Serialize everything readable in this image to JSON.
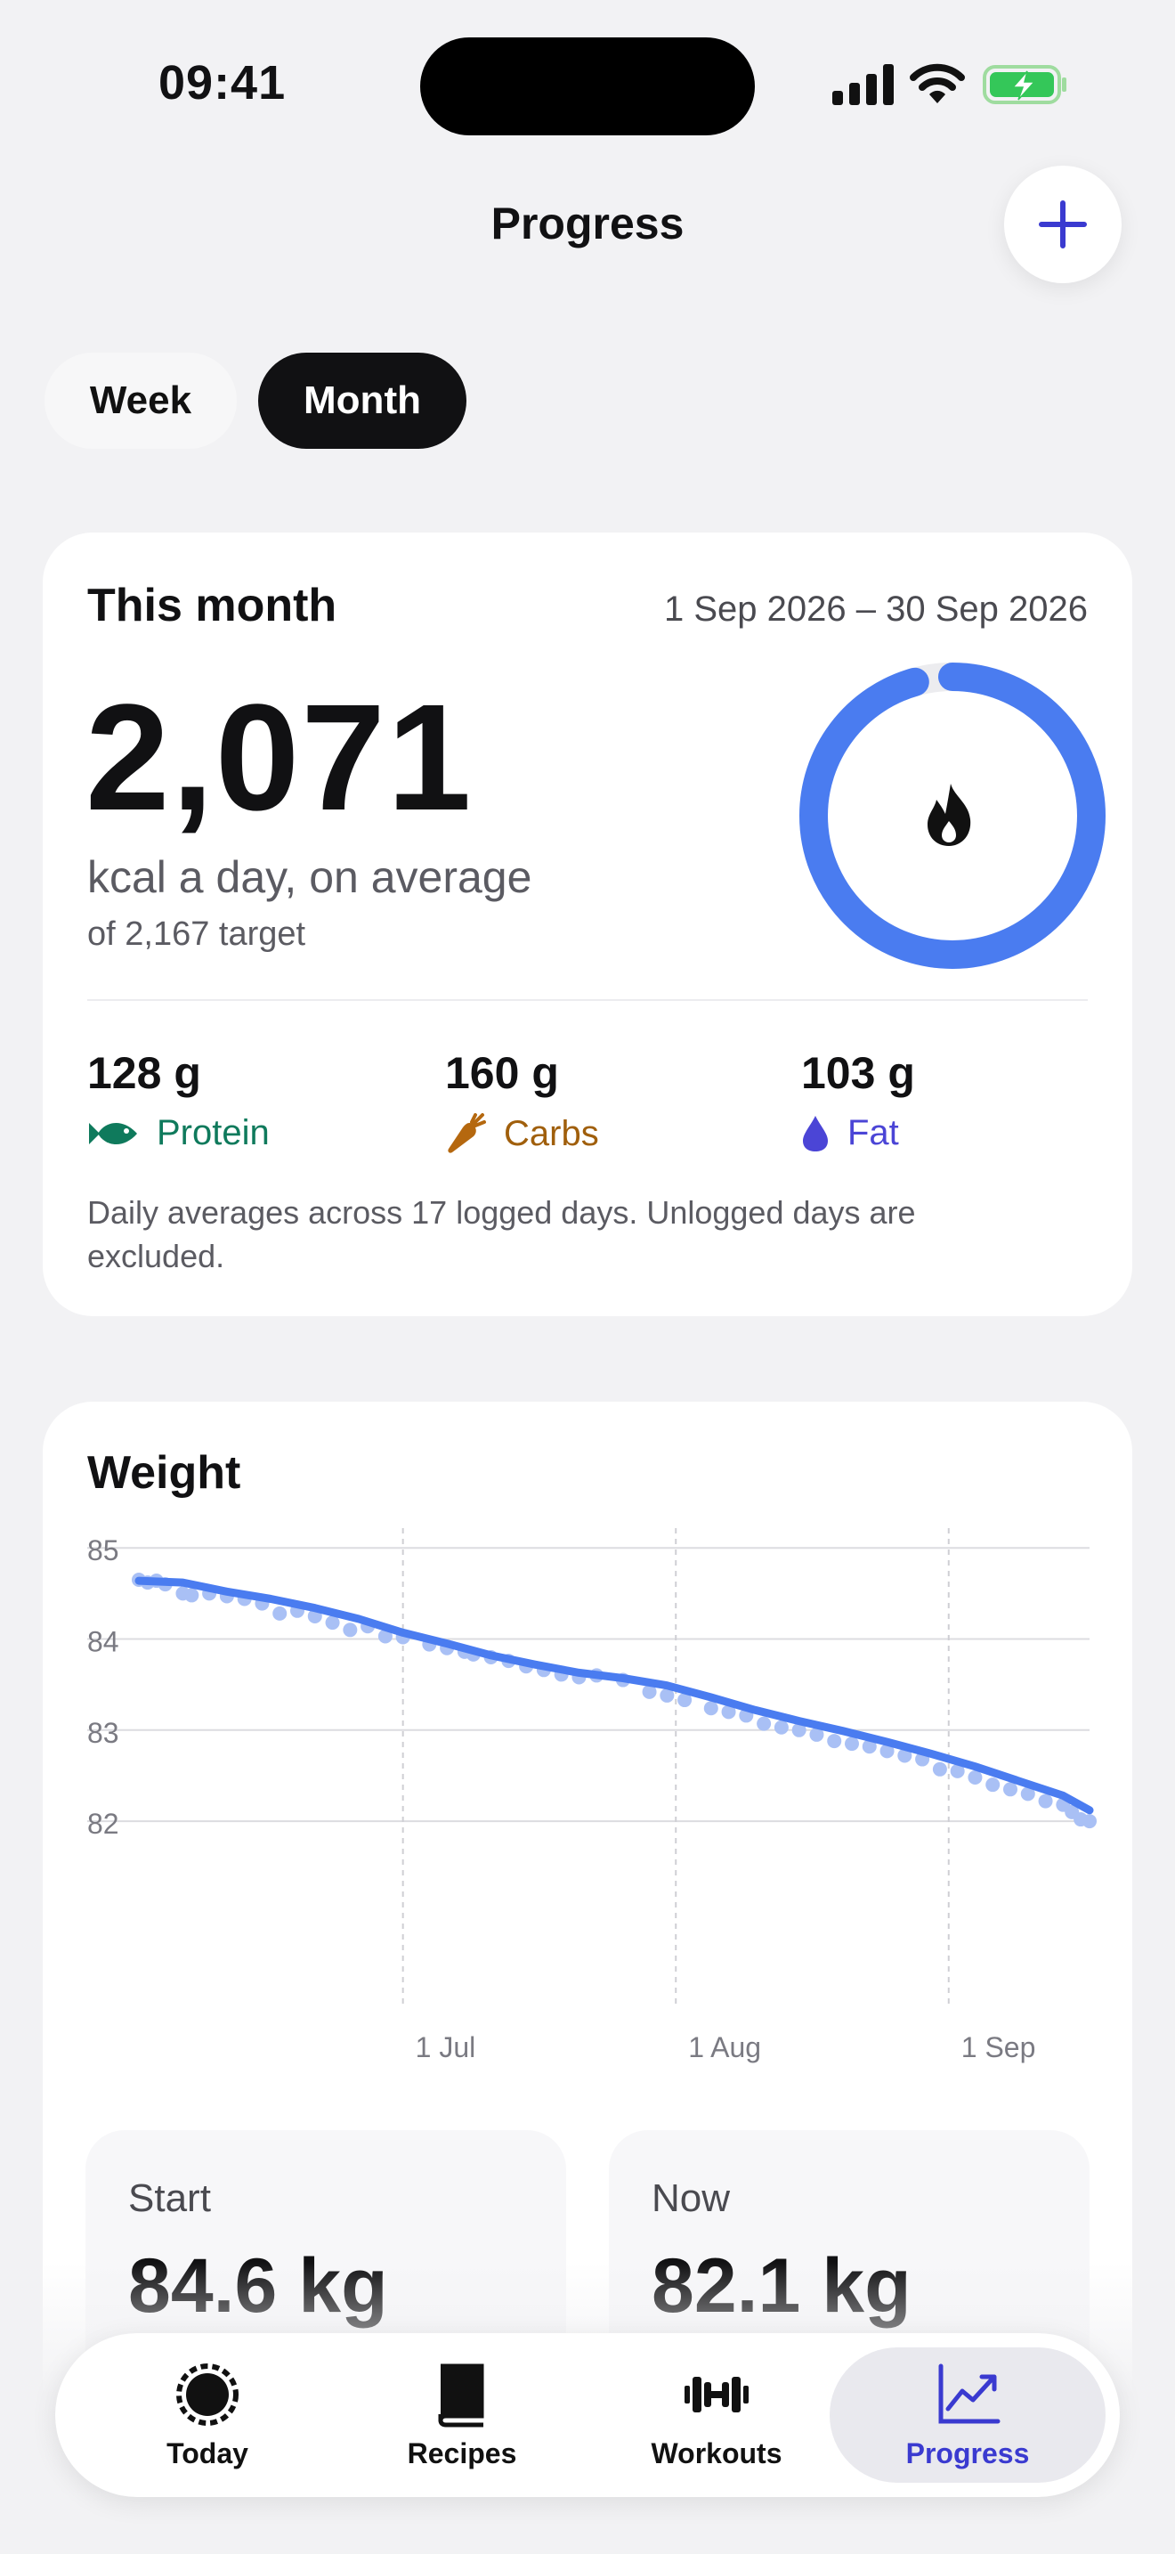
{
  "status": {
    "time": "09:41"
  },
  "header": {
    "title": "Progress",
    "add_icon": "plus-icon"
  },
  "segments": {
    "week": "Week",
    "month": "Month",
    "selected": "Month"
  },
  "month_card": {
    "title": "This month",
    "date_range": "1 Sep 2026 – 30 Sep 2026",
    "average_kcal": "2,071",
    "avg_label": "kcal a day, on average",
    "target_label": "of 2,167 target",
    "ring_progress": 0.956,
    "ring_icon": "flame-icon",
    "macros": [
      {
        "value": "128 g",
        "label": "Protein",
        "icon": "fish-icon",
        "color": "#0f7a5c"
      },
      {
        "value": "160 g",
        "label": "Carbs",
        "icon": "carrot-icon",
        "color": "#a05f0c"
      },
      {
        "value": "103 g",
        "label": "Fat",
        "icon": "drop-icon",
        "color": "#4b45d6"
      }
    ],
    "note": "Daily averages across 17 logged days. Unlogged days are excluded."
  },
  "weight_card": {
    "title": "Weight",
    "start_label": "Start",
    "start_value": "84.6 kg",
    "now_label": "Now",
    "now_value": "82.1 kg"
  },
  "chart_data": {
    "type": "line",
    "ylabel": "",
    "xlabel": "",
    "ylim": [
      81.6,
      85.1
    ],
    "yticks": [
      85,
      84,
      83,
      82
    ],
    "xticks": [
      {
        "label": "1 Jul",
        "day": 30
      },
      {
        "label": "1 Aug",
        "day": 61
      },
      {
        "label": "1 Sep",
        "day": 92
      }
    ],
    "x_range": [
      0,
      108
    ],
    "trend": [
      [
        0,
        84.64
      ],
      [
        5,
        84.62
      ],
      [
        10,
        84.52
      ],
      [
        15,
        84.44
      ],
      [
        20,
        84.34
      ],
      [
        25,
        84.22
      ],
      [
        30,
        84.07
      ],
      [
        35,
        83.95
      ],
      [
        40,
        83.82
      ],
      [
        45,
        83.72
      ],
      [
        50,
        83.63
      ],
      [
        55,
        83.57
      ],
      [
        60,
        83.49
      ],
      [
        65,
        83.36
      ],
      [
        70,
        83.22
      ],
      [
        75,
        83.1
      ],
      [
        80,
        82.99
      ],
      [
        85,
        82.87
      ],
      [
        90,
        82.74
      ],
      [
        95,
        82.6
      ],
      [
        100,
        82.44
      ],
      [
        105,
        82.28
      ],
      [
        108,
        82.12
      ]
    ],
    "points": [
      [
        0,
        84.65
      ],
      [
        1,
        84.62
      ],
      [
        2,
        84.64
      ],
      [
        3,
        84.6
      ],
      [
        5,
        84.5
      ],
      [
        6,
        84.48
      ],
      [
        8,
        84.5
      ],
      [
        10,
        84.47
      ],
      [
        12,
        84.44
      ],
      [
        14,
        84.39
      ],
      [
        16,
        84.28
      ],
      [
        18,
        84.31
      ],
      [
        20,
        84.25
      ],
      [
        22,
        84.18
      ],
      [
        24,
        84.1
      ],
      [
        26,
        84.14
      ],
      [
        28,
        84.03
      ],
      [
        30,
        84.02
      ],
      [
        33,
        83.94
      ],
      [
        35,
        83.9
      ],
      [
        37,
        83.86
      ],
      [
        38,
        83.83
      ],
      [
        40,
        83.8
      ],
      [
        42,
        83.76
      ],
      [
        44,
        83.7
      ],
      [
        46,
        83.66
      ],
      [
        48,
        83.61
      ],
      [
        50,
        83.58
      ],
      [
        52,
        83.6
      ],
      [
        55,
        83.55
      ],
      [
        58,
        83.42
      ],
      [
        60,
        83.38
      ],
      [
        62,
        83.33
      ],
      [
        65,
        83.24
      ],
      [
        67,
        83.2
      ],
      [
        69,
        83.16
      ],
      [
        71,
        83.07
      ],
      [
        73,
        83.03
      ],
      [
        75,
        83.0
      ],
      [
        77,
        82.95
      ],
      [
        79,
        82.88
      ],
      [
        81,
        82.85
      ],
      [
        83,
        82.82
      ],
      [
        85,
        82.77
      ],
      [
        87,
        82.72
      ],
      [
        89,
        82.68
      ],
      [
        91,
        82.57
      ],
      [
        93,
        82.55
      ],
      [
        95,
        82.48
      ],
      [
        97,
        82.4
      ],
      [
        99,
        82.35
      ],
      [
        101,
        82.3
      ],
      [
        103,
        82.22
      ],
      [
        105,
        82.18
      ],
      [
        106,
        82.1
      ],
      [
        107,
        82.02
      ],
      [
        108,
        82.0
      ]
    ],
    "grid": true,
    "line_color": "#4a7cf0",
    "point_color": "#a9c0f5"
  },
  "tabs": [
    {
      "label": "Today",
      "icon": "today-ring-icon",
      "active": false
    },
    {
      "label": "Recipes",
      "icon": "book-icon",
      "active": false
    },
    {
      "label": "Workouts",
      "icon": "dumbbell-icon",
      "active": false
    },
    {
      "label": "Progress",
      "icon": "chart-trend-icon",
      "active": true
    }
  ],
  "colors": {
    "accent": "#3a3ad0",
    "ring": "#4a7cf0",
    "ring_track": "#ececef"
  }
}
